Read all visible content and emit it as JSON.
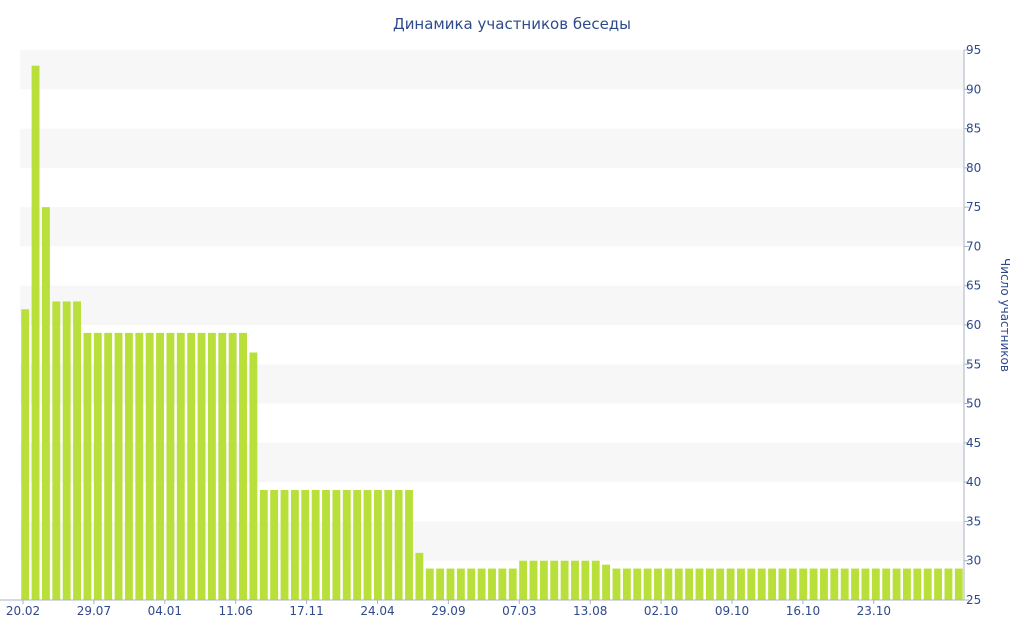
{
  "chart_data": {
    "type": "bar",
    "title": "Динамика участников беседы",
    "xlabel": "",
    "ylabel": "Число участников",
    "y_axis_side": "right",
    "ylim": [
      25,
      95
    ],
    "yticks": [
      25,
      30,
      35,
      40,
      45,
      50,
      55,
      60,
      65,
      70,
      75,
      80,
      85,
      90,
      95
    ],
    "grid": "alternating horizontal bands",
    "bar_color": "#b9e03a",
    "band_color": "#f7f7f7",
    "text_color": "#2e4a8c",
    "x_tick_labels": [
      "20.02",
      "29.07",
      "04.01",
      "11.06",
      "17.11",
      "24.04",
      "29.09",
      "07.03",
      "13.08",
      "02.10",
      "09.10",
      "16.10",
      "23.10"
    ],
    "values": [
      62,
      93,
      75,
      63,
      63,
      63,
      59,
      59,
      59,
      59,
      59,
      59,
      59,
      59,
      59,
      59,
      59,
      59,
      59,
      59,
      59,
      59,
      56.5,
      39,
      39,
      39,
      39,
      39,
      39,
      39,
      39,
      39,
      39,
      39,
      39,
      39,
      39,
      39,
      31,
      29,
      29,
      29,
      29,
      29,
      29,
      29,
      29,
      29,
      30,
      30,
      30,
      30,
      30,
      30,
      30,
      30,
      29.5,
      29,
      29,
      29,
      29,
      29,
      29,
      29,
      29,
      29,
      29,
      29,
      29,
      29,
      29,
      29,
      29,
      29,
      29,
      29,
      29,
      29,
      29,
      29,
      29,
      29,
      29,
      29,
      29,
      29,
      29,
      29,
      29,
      29,
      29
    ]
  }
}
